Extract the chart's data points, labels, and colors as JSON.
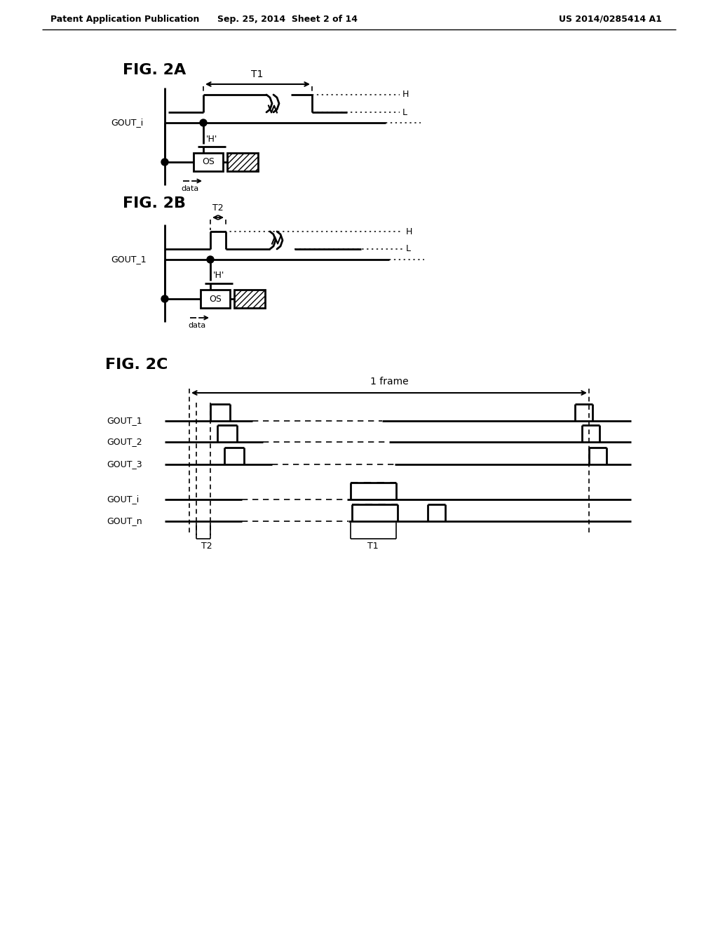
{
  "header_left": "Patent Application Publication",
  "header_mid": "Sep. 25, 2014  Sheet 2 of 14",
  "header_right": "US 2014/0285414 A1",
  "fig2a_label": "FIG. 2A",
  "fig2b_label": "FIG. 2B",
  "fig2c_label": "FIG. 2C",
  "bg_color": "#ffffff"
}
